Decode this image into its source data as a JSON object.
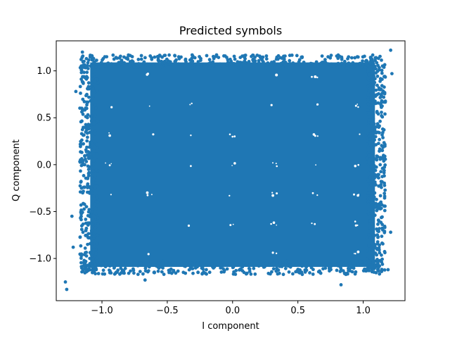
{
  "chart_data": {
    "type": "scatter",
    "title": "Predicted symbols",
    "xlabel": "I component",
    "ylabel": "Q component",
    "xlim": [
      -1.35,
      1.32
    ],
    "ylim": [
      -1.45,
      1.32
    ],
    "xticks": [
      -1.0,
      -0.5,
      0.0,
      0.5,
      1.0
    ],
    "xtick_labels": [
      "−1.0",
      "−0.5",
      "0.0",
      "0.5",
      "1.0"
    ],
    "yticks": [
      -1.0,
      -0.5,
      0.0,
      0.5,
      1.0
    ],
    "ytick_labels": [
      "−1.0",
      "−0.5",
      "0.0",
      "0.5",
      "1.0"
    ],
    "grid": false,
    "color": "#1f77b4",
    "series": [
      {
        "distribution": "dense uniform-like cloud filling the square",
        "x_range": [
          -1.15,
          1.15
        ],
        "y_range": [
          -1.15,
          1.15
        ],
        "gap_centers_x": [
          -0.95,
          -0.63,
          -0.32,
          0.0,
          0.32,
          0.63,
          0.95
        ],
        "gap_centers_y": [
          -0.95,
          -0.63,
          -0.32,
          0.0,
          0.32,
          0.63,
          0.95
        ],
        "outliers": [
          {
            "x": -1.27,
            "y": -1.33
          },
          {
            "x": -1.28,
            "y": -1.25
          },
          {
            "x": -1.22,
            "y": -0.88
          },
          {
            "x": -0.67,
            "y": -1.23
          },
          {
            "x": 0.83,
            "y": -1.28
          },
          {
            "x": 1.21,
            "y": 1.22
          },
          {
            "x": -1.15,
            "y": 1.2
          },
          {
            "x": 1.19,
            "y": -1.12
          },
          {
            "x": -1.23,
            "y": -0.55
          },
          {
            "x": 1.22,
            "y": 0.97
          },
          {
            "x": -1.2,
            "y": 0.78
          },
          {
            "x": 1.21,
            "y": -0.72
          }
        ]
      }
    ]
  }
}
